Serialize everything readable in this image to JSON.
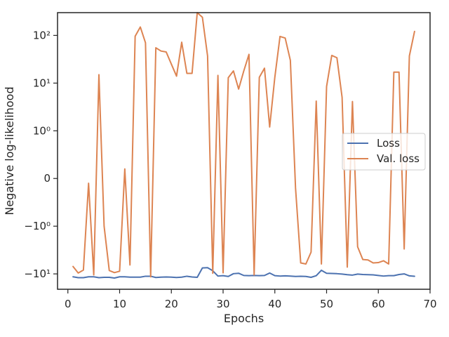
{
  "chart_data": {
    "type": "line",
    "title": "",
    "xlabel": "Epochs",
    "ylabel": "Negative log-likelihood",
    "yscale": "symlog",
    "xlim": [
      -2,
      70
    ],
    "ylim": [
      -21,
      300
    ],
    "x_ticks": [
      0,
      10,
      20,
      30,
      40,
      50,
      60,
      70
    ],
    "x_tick_labels": [
      "0",
      "10",
      "20",
      "30",
      "40",
      "50",
      "60",
      "70"
    ],
    "y_ticks": [
      -10,
      -1,
      0,
      1,
      10,
      100
    ],
    "y_tick_labels": [
      "−10¹",
      "−10⁰",
      "0",
      "10⁰",
      "10¹",
      "10²"
    ],
    "grid": false,
    "legend_position": "center-right",
    "x": [
      1,
      2,
      3,
      4,
      5,
      6,
      7,
      8,
      9,
      10,
      11,
      12,
      13,
      14,
      15,
      16,
      17,
      18,
      19,
      20,
      21,
      22,
      23,
      24,
      25,
      26,
      27,
      28,
      29,
      30,
      31,
      32,
      33,
      34,
      35,
      36,
      37,
      38,
      39,
      40,
      41,
      42,
      43,
      44,
      45,
      46,
      47,
      48,
      49,
      50,
      51,
      52,
      53,
      54,
      55,
      56,
      57,
      58,
      59,
      60,
      61,
      62,
      63,
      64,
      65,
      66,
      67
    ],
    "series": [
      {
        "name": "Loss",
        "color": "#4c72b0",
        "values": [
          -11.5,
          -12.0,
          -12.0,
          -11.5,
          -11.5,
          -12.0,
          -11.8,
          -11.8,
          -12.2,
          -11.5,
          -11.5,
          -11.7,
          -11.7,
          -11.7,
          -11.2,
          -11.2,
          -11.9,
          -11.7,
          -11.6,
          -11.7,
          -11.9,
          -11.7,
          -11.2,
          -11.6,
          -11.8,
          -7.5,
          -7.4,
          -8.6,
          -11.1,
          -10.9,
          -11.3,
          -9.9,
          -9.7,
          -10.8,
          -10.9,
          -10.8,
          -10.9,
          -10.8,
          -9.6,
          -10.9,
          -11.1,
          -11.0,
          -11.1,
          -11.3,
          -11.2,
          -11.3,
          -11.8,
          -10.9,
          -8.4,
          -9.7,
          -9.8,
          -9.9,
          -10.1,
          -10.4,
          -10.6,
          -10.1,
          -10.3,
          -10.4,
          -10.5,
          -10.8,
          -11.1,
          -10.9,
          -10.9,
          -10.3,
          -10.0,
          -11.0,
          -11.2
        ]
      },
      {
        "name": "Val. loss",
        "color": "#dd8452",
        "values": [
          -7.0,
          -9.6,
          -8.3,
          -0.1,
          -10.5,
          15.0,
          -1.0,
          -8.5,
          -9.4,
          -8.8,
          0.2,
          -6.5,
          96,
          150,
          70,
          -11.5,
          55,
          47,
          45,
          25,
          14,
          72,
          16,
          16,
          300,
          240,
          37,
          -9.7,
          14.5,
          -9.5,
          13,
          18,
          7.5,
          18,
          40,
          -10.5,
          13.2,
          20.5,
          1.2,
          13.3,
          95,
          88,
          30,
          -0.2,
          -5.9,
          -6.2,
          -3.5,
          4.2,
          -6.2,
          8.5,
          38,
          34,
          5.0,
          -7.2,
          4.1,
          -2.7,
          -5.0,
          -5.1,
          -5.9,
          -5.8,
          -5.3,
          -6.2,
          17,
          17,
          -3.0,
          37,
          121
        ]
      }
    ]
  }
}
